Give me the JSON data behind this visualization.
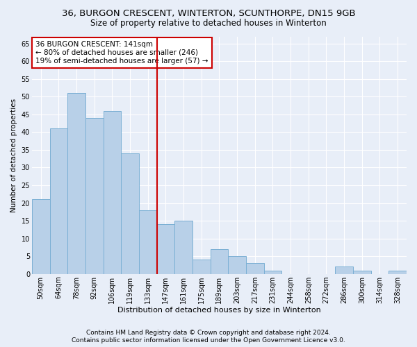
{
  "title1": "36, BURGON CRESCENT, WINTERTON, SCUNTHORPE, DN15 9GB",
  "title2": "Size of property relative to detached houses in Winterton",
  "xlabel": "Distribution of detached houses by size in Winterton",
  "ylabel": "Number of detached properties",
  "categories": [
    "50sqm",
    "64sqm",
    "78sqm",
    "92sqm",
    "106sqm",
    "119sqm",
    "133sqm",
    "147sqm",
    "161sqm",
    "175sqm",
    "189sqm",
    "203sqm",
    "217sqm",
    "231sqm",
    "244sqm",
    "258sqm",
    "272sqm",
    "286sqm",
    "300sqm",
    "314sqm",
    "328sqm"
  ],
  "values": [
    21,
    41,
    51,
    44,
    46,
    34,
    18,
    14,
    15,
    4,
    7,
    5,
    3,
    1,
    0,
    0,
    0,
    2,
    1,
    0,
    1
  ],
  "bar_color": "#b8d0e8",
  "bar_edge_color": "#7aafd4",
  "annotation_line1": "36 BURGON CRESCENT: 141sqm",
  "annotation_line2": "← 80% of detached houses are smaller (246)",
  "annotation_line3": "19% of semi-detached houses are larger (57) →",
  "annotation_box_color": "#ffffff",
  "annotation_box_edge_color": "#cc0000",
  "vline_color": "#cc0000",
  "footer1": "Contains HM Land Registry data © Crown copyright and database right 2024.",
  "footer2": "Contains public sector information licensed under the Open Government Licence v3.0.",
  "ylim": [
    0,
    67
  ],
  "bg_color": "#e8eef8",
  "plot_bg_color": "#e8eef8",
  "grid_color": "#ffffff",
  "title1_fontsize": 9.5,
  "title2_fontsize": 8.5,
  "tick_fontsize": 7,
  "ylabel_fontsize": 7.5,
  "xlabel_fontsize": 8,
  "annotation_fontsize": 7.5,
  "footer_fontsize": 6.5
}
